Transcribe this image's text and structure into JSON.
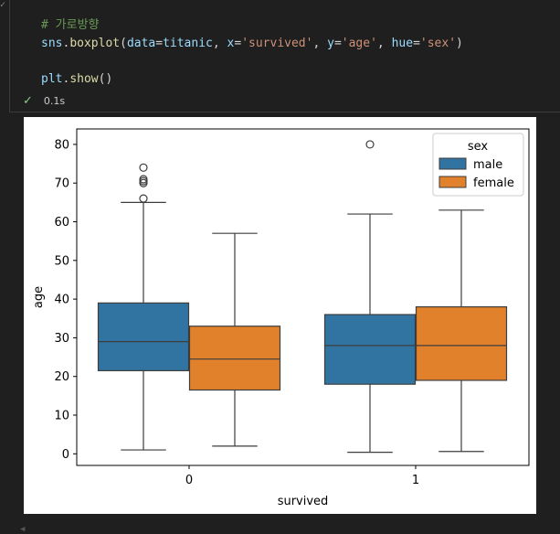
{
  "code": {
    "comment": "# 가로방향",
    "line2": {
      "obj": "sns",
      "fn": "boxplot",
      "arg1": "data",
      "val1": "titanic",
      "arg2": "x",
      "val2": "'survived'",
      "arg3": "y",
      "val3": "'age'",
      "arg4": "hue",
      "val4": "'sex'"
    },
    "line3": {
      "obj": "plt",
      "fn": "show"
    }
  },
  "status": {
    "icon": "check-icon",
    "time": "0.1s"
  },
  "colors": {
    "male": "#3274a1",
    "female": "#e1812c"
  },
  "chart_data": {
    "type": "boxplot",
    "xlabel": "survived",
    "ylabel": "age",
    "categories": [
      "0",
      "1"
    ],
    "ylim": [
      -3,
      84
    ],
    "yticks": [
      0,
      10,
      20,
      30,
      40,
      50,
      60,
      70,
      80
    ],
    "legend": {
      "title": "sex",
      "placement": "top-right",
      "entries": [
        "male",
        "female"
      ]
    },
    "series": [
      {
        "name": "male",
        "boxes": [
          {
            "category": "0",
            "whislo": 1,
            "q1": 21.5,
            "med": 29,
            "q3": 39,
            "whishi": 65,
            "fliers": [
              66,
              70,
              70.5,
              71,
              74
            ]
          },
          {
            "category": "1",
            "whislo": 0.4,
            "q1": 18,
            "med": 28,
            "q3": 36,
            "whishi": 62,
            "fliers": [
              80
            ]
          }
        ]
      },
      {
        "name": "female",
        "boxes": [
          {
            "category": "0",
            "whislo": 2,
            "q1": 16.5,
            "med": 24.5,
            "q3": 33,
            "whishi": 57,
            "fliers": []
          },
          {
            "category": "1",
            "whislo": 0.6,
            "q1": 19,
            "med": 28,
            "q3": 38,
            "whishi": 63,
            "fliers": []
          }
        ]
      }
    ]
  }
}
